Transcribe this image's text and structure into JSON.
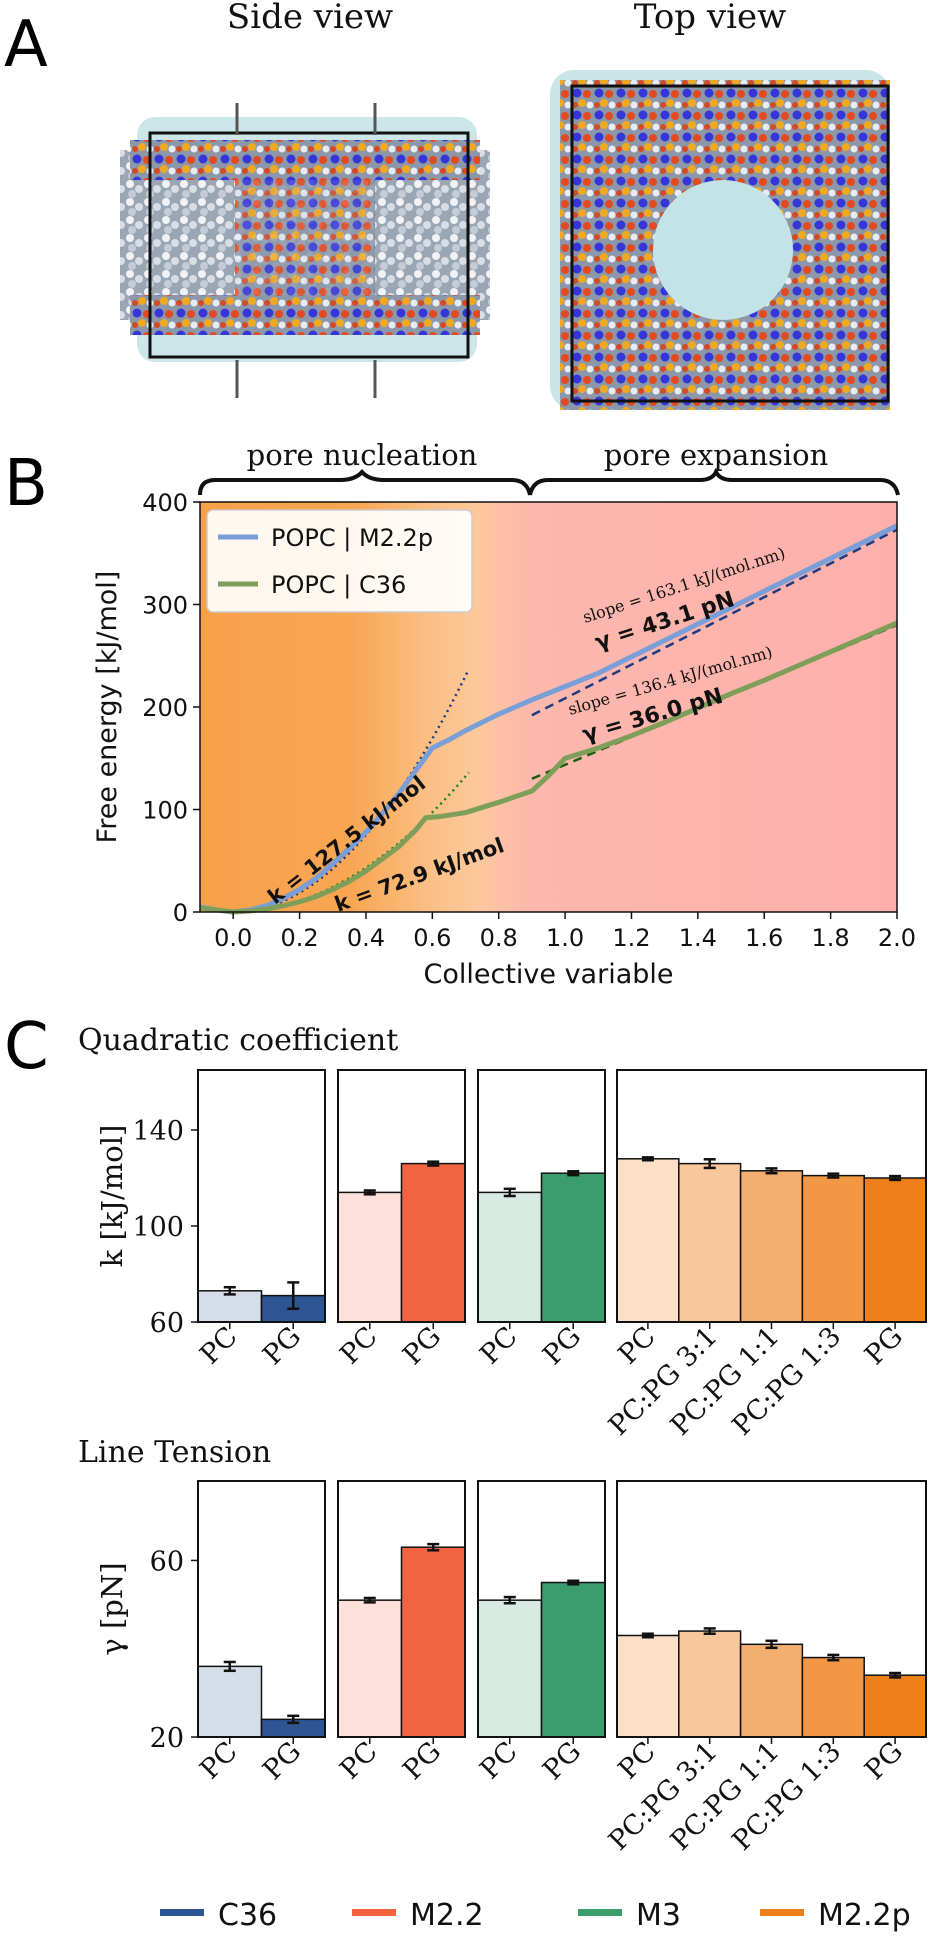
{
  "panels": {
    "a": {
      "letter": "A",
      "side_view_title": "Side view",
      "top_view_title": "Top view"
    },
    "b": {
      "letter": "B",
      "brace_left": "pore nucleation",
      "brace_right": "pore expansion"
    },
    "c": {
      "letter": "C"
    }
  },
  "colors": {
    "C36": "#2e5593",
    "M2.2": "#f2643f",
    "M3": "#3b9c6c",
    "M2.2p": "#ee7f1a",
    "m22p_line": "#7a9ed8",
    "c36_line": "#7f9e5a",
    "nucleation_bg": "#f7a95a",
    "expansion_bg": "#fcb3b0",
    "fit_blue_text": "#1f3a82",
    "fit_green_text": "#2a7a1a"
  },
  "chart_data": [
    {
      "type": "line",
      "title": "",
      "xlabel": "Collective variable",
      "ylabel": "Free energy [kJ/mol]",
      "xlim": [
        -0.1,
        2.0
      ],
      "ylim": [
        0,
        400
      ],
      "xticks": [
        "0.0",
        "0.2",
        "0.4",
        "0.6",
        "0.8",
        "1.0",
        "1.2",
        "1.4",
        "1.6",
        "1.8",
        "2.0"
      ],
      "yticks": [
        "0",
        "100",
        "200",
        "300",
        "400"
      ],
      "legend_position": "top-left",
      "series": [
        {
          "name": "POPC | M2.2p",
          "x": [
            -0.1,
            -0.05,
            0.0,
            0.05,
            0.1,
            0.15,
            0.2,
            0.25,
            0.3,
            0.35,
            0.4,
            0.45,
            0.5,
            0.55,
            0.6,
            0.65,
            0.7,
            0.75,
            0.8,
            0.85,
            0.9,
            1.0,
            1.1,
            1.2,
            1.3,
            1.4,
            1.5,
            1.6,
            1.7,
            1.8,
            1.9,
            2.0
          ],
          "y": [
            5,
            2,
            0,
            2,
            6,
            13,
            22,
            33,
            47,
            62,
            78,
            96,
            116,
            138,
            160,
            168,
            177,
            185,
            193,
            200,
            207,
            220,
            233,
            249,
            265,
            281,
            297,
            313,
            329,
            345,
            361,
            377
          ]
        },
        {
          "name": "POPC | C36",
          "x": [
            -0.1,
            -0.05,
            0.0,
            0.05,
            0.1,
            0.15,
            0.2,
            0.25,
            0.3,
            0.35,
            0.4,
            0.45,
            0.5,
            0.55,
            0.58,
            0.62,
            0.7,
            0.8,
            0.9,
            0.95,
            1.0,
            1.1,
            1.2,
            1.3,
            1.4,
            1.5,
            1.6,
            1.7,
            1.8,
            1.9,
            2.0
          ],
          "y": [
            4,
            2,
            0,
            1,
            3,
            6,
            10,
            15,
            22,
            30,
            40,
            52,
            64,
            80,
            92,
            93,
            97,
            107,
            118,
            133,
            150,
            160,
            172,
            185,
            199,
            213,
            226,
            240,
            254,
            268,
            282
          ]
        }
      ],
      "annotations": {
        "k_blue": "k = 127.5 kJ/mol",
        "k_green": "k = 72.9 kJ/mol",
        "slope_blue": "slope = 163.1 kJ/(mol.nm)",
        "gamma_blue": "γ = 43.1 pN",
        "slope_green": "slope = 136.4 kJ/(mol.nm)",
        "gamma_green": "γ = 36.0 pN"
      }
    },
    {
      "type": "bar",
      "title": "Quadratic coefficient",
      "ylabel": "k [kJ/mol]",
      "ylim": [
        60,
        165
      ],
      "yticks": [
        "60",
        "100",
        "140"
      ],
      "groups": [
        {
          "force_field": "C36",
          "categories": [
            "PC",
            "PG"
          ],
          "values": [
            73,
            71
          ],
          "errors": [
            1.5,
            5.5
          ]
        },
        {
          "force_field": "M2.2",
          "categories": [
            "PC",
            "PG"
          ],
          "values": [
            114,
            126
          ],
          "errors": [
            0.8,
            0.8
          ]
        },
        {
          "force_field": "M3",
          "categories": [
            "PC",
            "PG"
          ],
          "values": [
            114,
            122
          ],
          "errors": [
            1.5,
            0.8
          ]
        },
        {
          "force_field": "M2.2p",
          "categories": [
            "PC",
            "PC:PG 3:1",
            "PC:PG 1:1",
            "PC:PG 1:3",
            "PG"
          ],
          "values": [
            128,
            126,
            123,
            121,
            120
          ],
          "errors": [
            0.6,
            1.8,
            1.0,
            0.8,
            0.8
          ]
        }
      ]
    },
    {
      "type": "bar",
      "title": "Line Tension",
      "ylabel": "γ [pN]",
      "ylim": [
        20,
        78
      ],
      "yticks": [
        "20",
        "60"
      ],
      "groups": [
        {
          "force_field": "C36",
          "categories": [
            "PC",
            "PG"
          ],
          "values": [
            36,
            24
          ],
          "errors": [
            1.0,
            0.8
          ]
        },
        {
          "force_field": "M2.2",
          "categories": [
            "PC",
            "PG"
          ],
          "values": [
            51,
            63
          ],
          "errors": [
            0.5,
            0.7
          ]
        },
        {
          "force_field": "M3",
          "categories": [
            "PC",
            "PG"
          ],
          "values": [
            51,
            55
          ],
          "errors": [
            0.7,
            0.4
          ]
        },
        {
          "force_field": "M2.2p",
          "categories": [
            "PC",
            "PC:PG 3:1",
            "PC:PG 1:1",
            "PC:PG 1:3",
            "PG"
          ],
          "values": [
            43,
            44,
            41,
            38,
            34
          ],
          "errors": [
            0.4,
            0.6,
            0.8,
            0.6,
            0.5
          ]
        }
      ]
    }
  ],
  "legend": [
    {
      "label": "C36"
    },
    {
      "label": "M2.2"
    },
    {
      "label": "M3"
    },
    {
      "label": "M2.2p"
    }
  ]
}
